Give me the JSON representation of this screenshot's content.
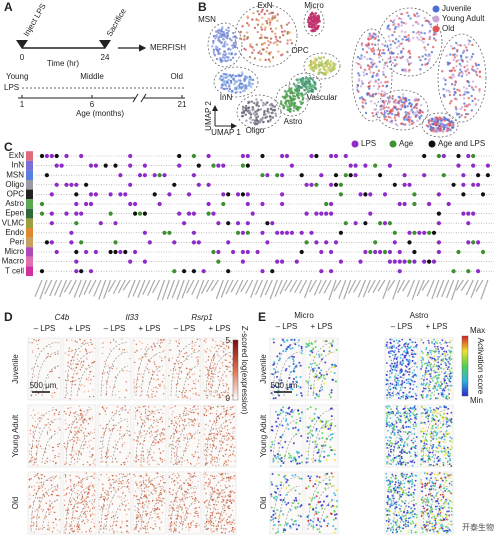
{
  "panel_a": {
    "label": "A",
    "inject": "Inject LPS",
    "sacrifice": "Sacrifice",
    "time_ticks": [
      "0",
      "24"
    ],
    "time_label": "Time (hr)",
    "assay": "MERFISH",
    "ages": [
      "Young",
      "Middle",
      "Old"
    ],
    "lps": "LPS",
    "age_ticks": [
      "1",
      "6",
      "21"
    ],
    "age_label": "Age (months)"
  },
  "panel_b": {
    "label": "B",
    "clusters": [
      "ExN",
      "Micro",
      "MSN",
      "OPC",
      "InN",
      "Vascular",
      "Astro",
      "Oligo"
    ],
    "axis_y": "UMAP 2",
    "axis_x": "UMAP 1",
    "legend": [
      {
        "name": "Juvenile",
        "color": "#4a6fd6"
      },
      {
        "name": "Young Adult",
        "color": "#c9a5d8"
      },
      {
        "name": "Old",
        "color": "#e05555"
      }
    ]
  },
  "panel_c": {
    "label": "C",
    "legend": [
      {
        "name": "LPS",
        "color": "#8e2bc9"
      },
      {
        "name": "Age",
        "color": "#3d8f2f"
      },
      {
        "name": "Age and LPS",
        "color": "#111111"
      }
    ],
    "rows": [
      {
        "name": "ExN",
        "color": "#e06a7a"
      },
      {
        "name": "InN",
        "color": "#7b6fd6"
      },
      {
        "name": "MSN",
        "color": "#5b7fe0"
      },
      {
        "name": "Oligo",
        "color": "#9a9aa6"
      },
      {
        "name": "OPC",
        "color": "#222222"
      },
      {
        "name": "Astro",
        "color": "#5aa850"
      },
      {
        "name": "Epen",
        "color": "#2e6a3a"
      },
      {
        "name": "VLMC",
        "color": "#9aa040"
      },
      {
        "name": "Endo",
        "color": "#e08a30"
      },
      {
        "name": "Peri",
        "color": "#c8a060"
      },
      {
        "name": "Micro",
        "color": "#b04ab8"
      },
      {
        "name": "Macro",
        "color": "#e070b0"
      },
      {
        "name": "T cell",
        "color": "#d030a0"
      }
    ]
  },
  "panel_d": {
    "label": "D",
    "genes": [
      "C4b",
      "Il33",
      "Rsrp1"
    ],
    "conditions": [
      "– LPS",
      "+ LPS"
    ],
    "rows": [
      "Juvenile",
      "Young Adult",
      "Old"
    ],
    "scale_bar": "500 μm",
    "colorbar": {
      "max": 5,
      "min": 0,
      "label": "Z-scored log(expression)"
    }
  },
  "panel_e": {
    "label": "E",
    "cell_types": [
      "Micro",
      "Astro"
    ],
    "conditions": [
      "– LPS",
      "+ LPS"
    ],
    "rows": [
      "Juvenile",
      "Young Adult",
      "Old"
    ],
    "scale_bar": "500 μm",
    "colorbar": {
      "max": "Max",
      "min": "Min",
      "label": "Activation score"
    }
  },
  "watermark": "开泰生物"
}
